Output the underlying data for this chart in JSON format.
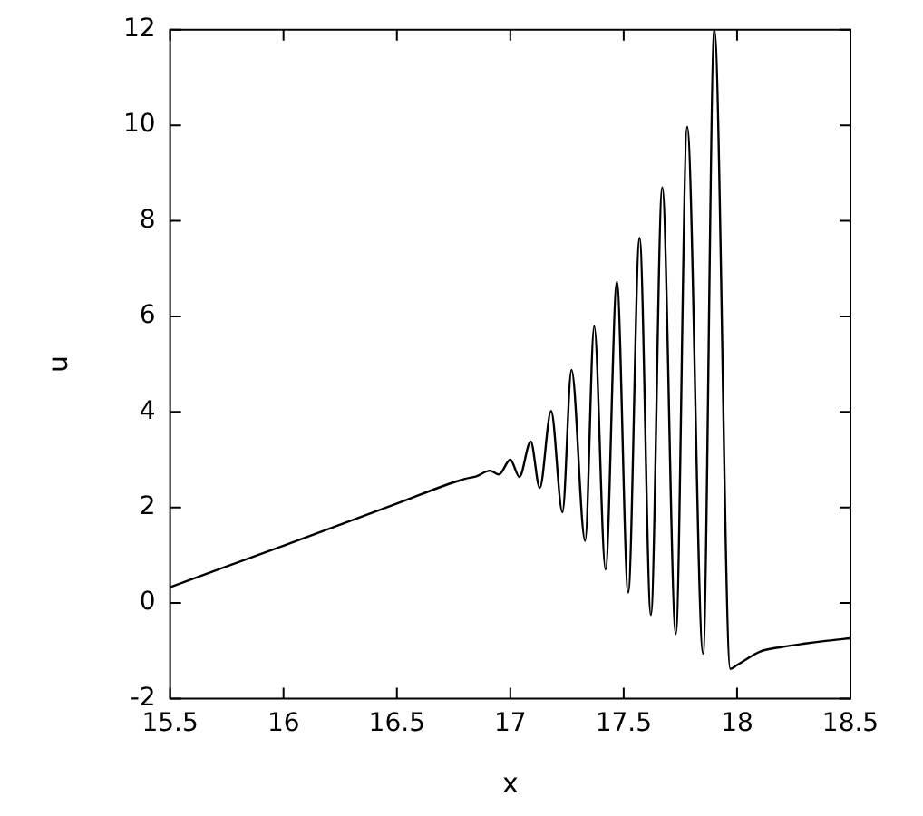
{
  "chart_data": {
    "type": "line",
    "xlabel": "x",
    "ylabel": "u",
    "xlim": [
      15.5,
      18.5
    ],
    "xticks": [
      15.5,
      16,
      16.5,
      17,
      17.5,
      18,
      18.5
    ],
    "ylim": [
      -2,
      12
    ],
    "yticks": [
      -2,
      0,
      2,
      4,
      6,
      8,
      10,
      12
    ],
    "grid": false,
    "legend": false,
    "marker": "none",
    "line_style": "solid",
    "series": [
      {
        "color": "#000000",
        "x": [
          15.5,
          16.0,
          16.5,
          16.8,
          16.85,
          16.91,
          16.95,
          17.0,
          17.04,
          17.09,
          17.13,
          17.18,
          17.23,
          17.27,
          17.33,
          17.37,
          17.42,
          17.47,
          17.52,
          17.57,
          17.62,
          17.67,
          17.73,
          17.78,
          17.85,
          17.9,
          17.97,
          18.0,
          18.1,
          18.2,
          18.3,
          18.4,
          18.5
        ],
        "values": [
          0.33,
          1.2,
          2.08,
          2.6,
          2.65,
          2.77,
          2.69,
          3.0,
          2.64,
          3.38,
          2.41,
          4.02,
          1.9,
          4.88,
          1.3,
          5.8,
          0.7,
          6.72,
          0.22,
          7.64,
          -0.25,
          8.7,
          -0.65,
          9.97,
          -1.06,
          12,
          -1.38,
          -1.3,
          -1.02,
          -0.92,
          -0.85,
          -0.79,
          -0.74
        ]
      }
    ]
  }
}
